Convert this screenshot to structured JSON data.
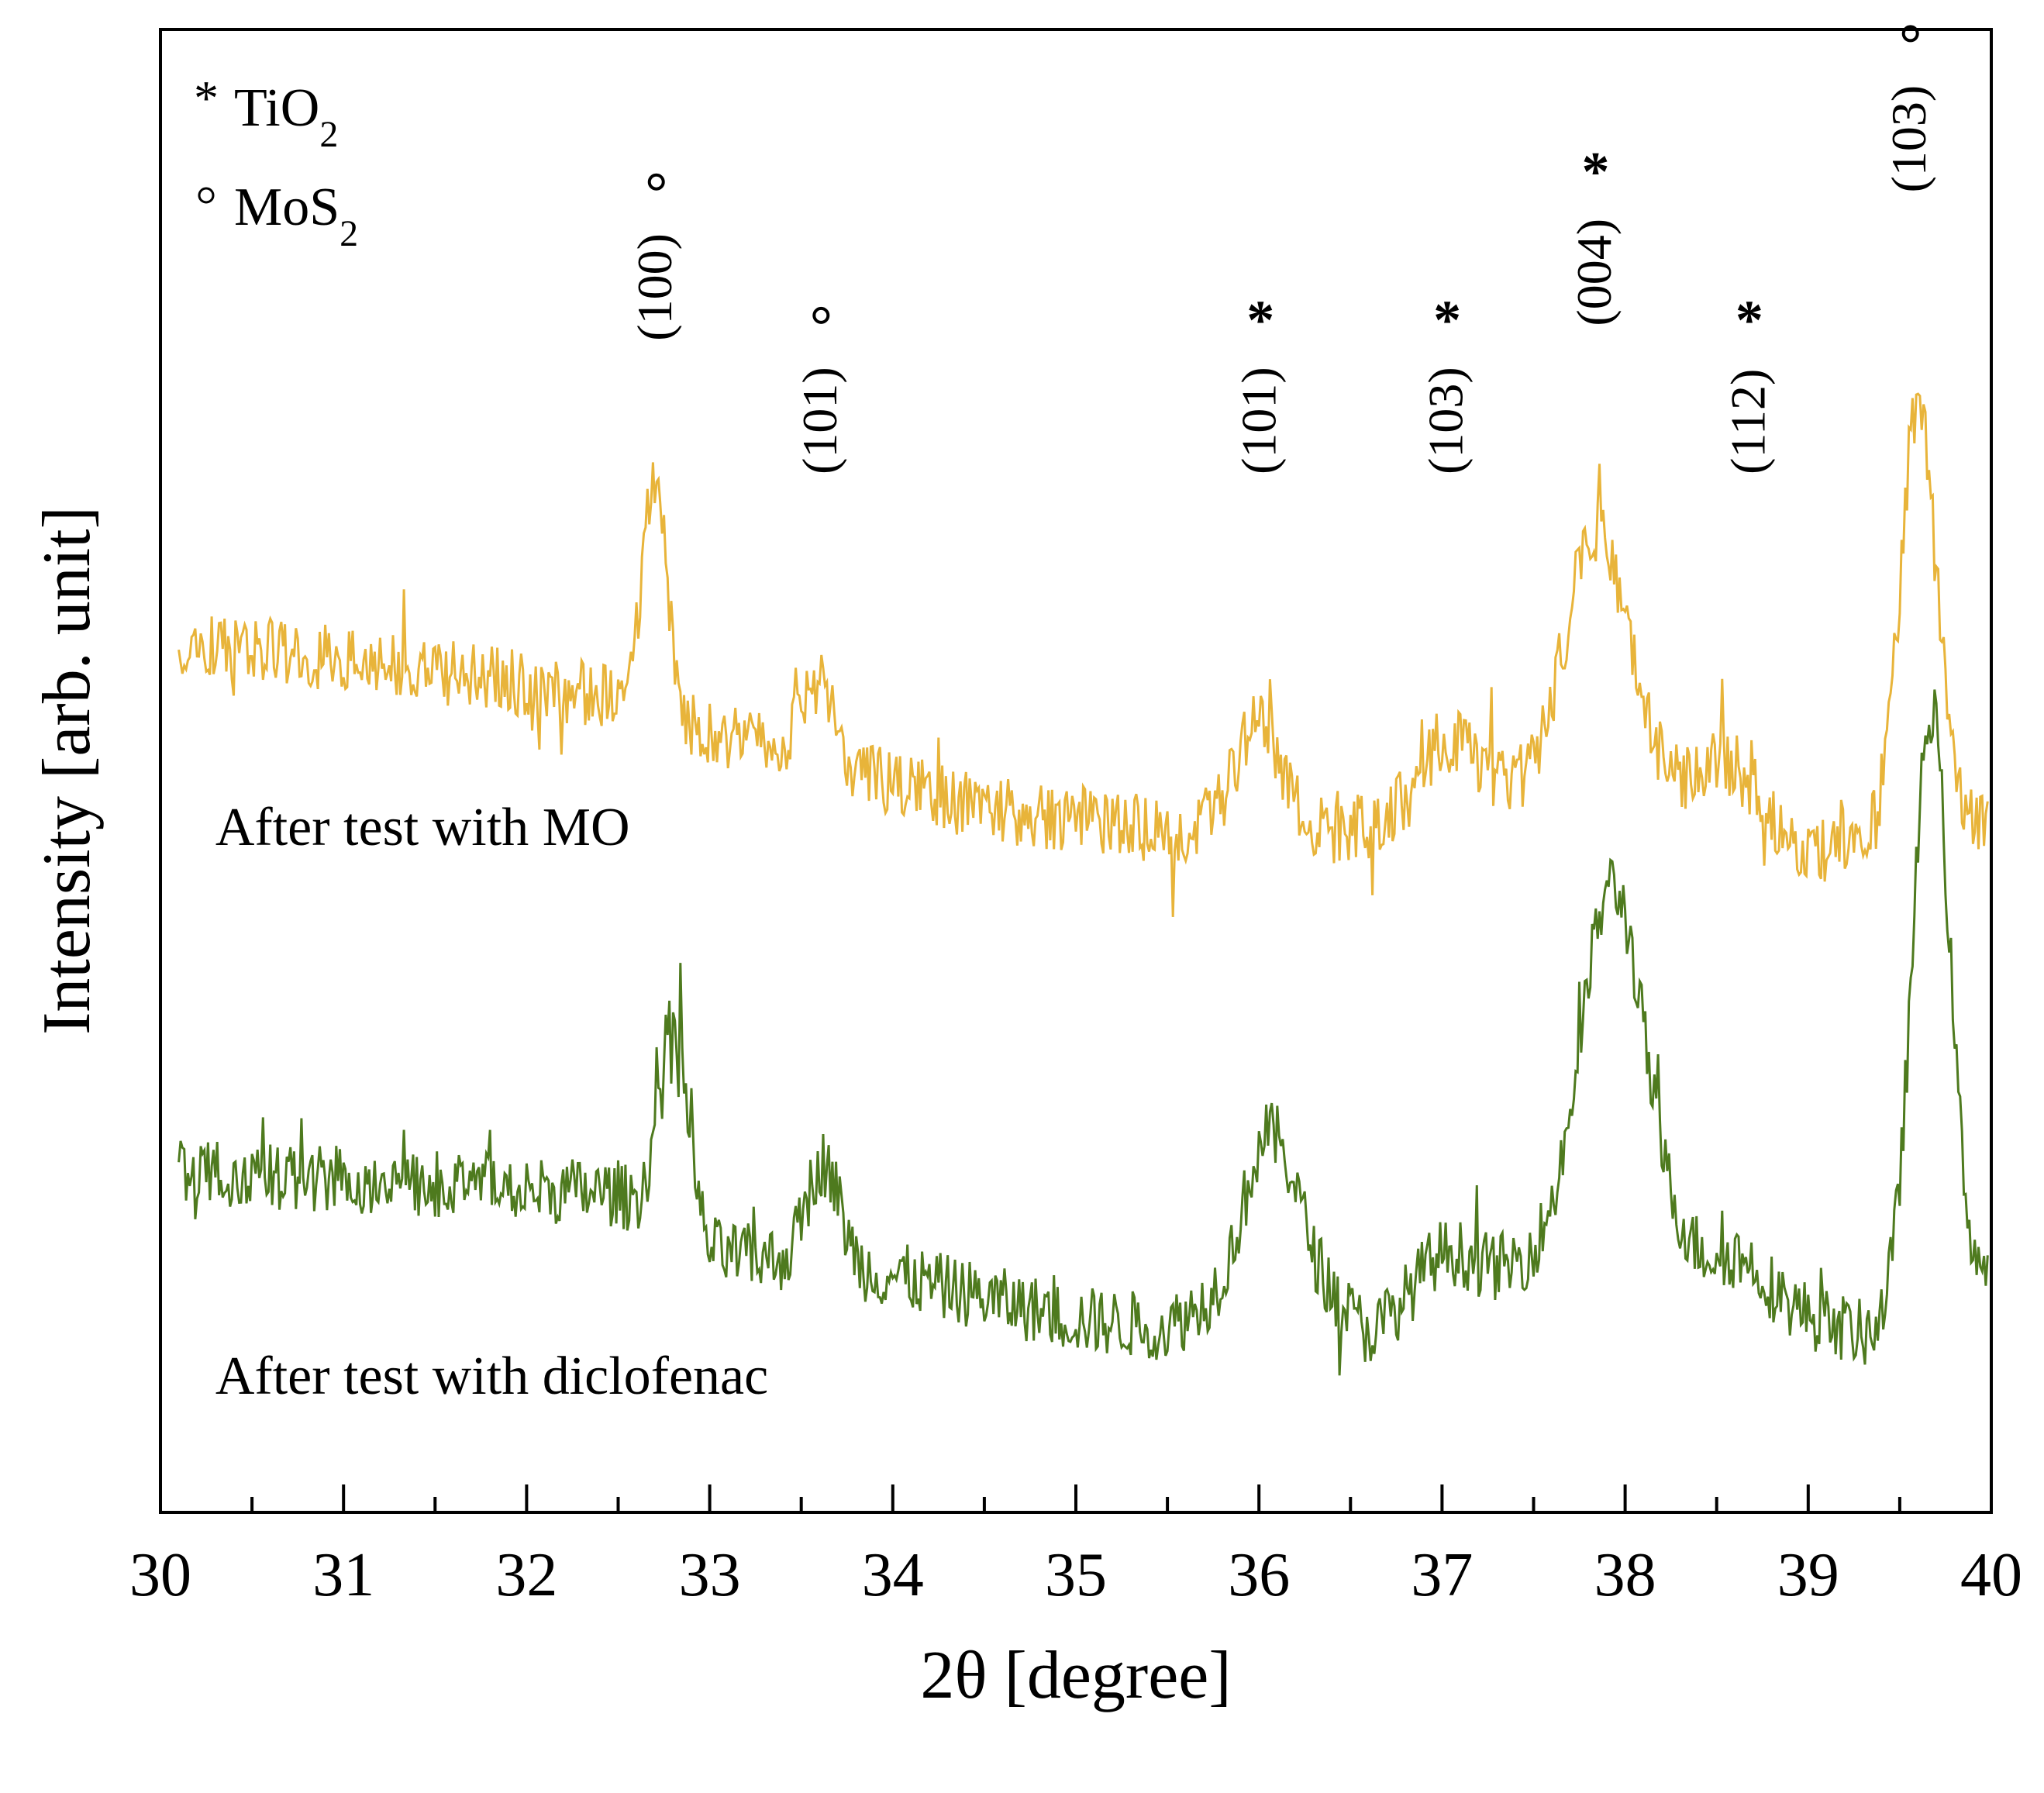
{
  "chart_data": {
    "type": "line",
    "title": "",
    "xlabel": "2θ [degree]",
    "ylabel": "Intensity [arb. unit]",
    "xlim": [
      30,
      40
    ],
    "ylim": [
      0,
      100
    ],
    "y_ticks_shown": false,
    "x_ticks": [
      "30",
      "31",
      "32",
      "33",
      "34",
      "35",
      "36",
      "37",
      "38",
      "39",
      "40"
    ],
    "legend": {
      "placement": "top-left",
      "items": [
        {
          "symbol": "*",
          "label": "TiO",
          "sub": "2"
        },
        {
          "symbol": "○",
          "label": "MoS",
          "sub": "2"
        }
      ]
    },
    "series": [
      {
        "name": "After test with MO",
        "color": "#E8B43A",
        "baseline": [
          [
            30.0,
            59.0
          ],
          [
            32.5,
            55.0
          ],
          [
            33.0,
            52.5
          ],
          [
            34.5,
            47.5
          ],
          [
            35.5,
            46.0
          ],
          [
            36.5,
            46.0
          ],
          [
            37.5,
            49.0
          ],
          [
            38.5,
            48.5
          ],
          [
            39.0,
            44.5
          ],
          [
            39.2,
            44.5
          ],
          [
            40.0,
            46.5
          ]
        ],
        "peaks": [
          {
            "x": 32.7,
            "h": 15.0,
            "w": 0.07
          },
          {
            "x": 33.58,
            "h": 5.5,
            "w": 0.09
          },
          {
            "x": 36.0,
            "h": 7.0,
            "w": 0.13
          },
          {
            "x": 37.02,
            "h": 4.5,
            "w": 0.15
          },
          {
            "x": 37.85,
            "h": 17.5,
            "w": 0.17
          },
          {
            "x": 38.6,
            "h": 2.5,
            "w": 0.15
          },
          {
            "x": 39.6,
            "h": 29.0,
            "w": 0.1
          }
        ],
        "noise": 2.3
      },
      {
        "name": "After test with diclofenac",
        "color": "#4E7A1E",
        "baseline": [
          [
            30.0,
            23.0
          ],
          [
            32.5,
            21.5
          ],
          [
            33.0,
            17.5
          ],
          [
            34.0,
            16.0
          ],
          [
            35.0,
            13.0
          ],
          [
            35.5,
            12.5
          ],
          [
            36.2,
            17.5
          ],
          [
            36.6,
            12.0
          ],
          [
            37.0,
            15.0
          ],
          [
            37.5,
            17.0
          ],
          [
            38.3,
            17.5
          ],
          [
            38.8,
            14.0
          ],
          [
            39.3,
            12.0
          ],
          [
            40.0,
            16.0
          ]
        ],
        "peaks": [
          {
            "x": 32.8,
            "h": 13.5,
            "w": 0.08
          },
          {
            "x": 33.62,
            "h": 7.0,
            "w": 0.09
          },
          {
            "x": 36.05,
            "h": 9.0,
            "w": 0.13
          },
          {
            "x": 37.0,
            "h": 2.5,
            "w": 0.15
          },
          {
            "x": 37.93,
            "h": 25.0,
            "w": 0.17
          },
          {
            "x": 38.65,
            "h": 2.0,
            "w": 0.15
          },
          {
            "x": 39.67,
            "h": 40.0,
            "w": 0.1
          }
        ],
        "noise": 2.3
      }
    ],
    "annotations": [
      {
        "x": 32.7,
        "y": 79,
        "hkl": "(100)",
        "marker": "○"
      },
      {
        "x": 33.6,
        "y": 70,
        "hkl": "(101)",
        "marker": "○"
      },
      {
        "x": 36.0,
        "y": 70,
        "hkl": "(101)",
        "marker": "*"
      },
      {
        "x": 37.02,
        "y": 70,
        "hkl": "(103)",
        "marker": "*"
      },
      {
        "x": 37.83,
        "y": 80,
        "hkl": "(004)",
        "marker": "*"
      },
      {
        "x": 38.67,
        "y": 70,
        "hkl": "(112)",
        "marker": "*"
      },
      {
        "x": 39.55,
        "y": 89,
        "hkl": "(103)",
        "marker": "○"
      }
    ],
    "series_labels": [
      {
        "text": "After test with MO",
        "x": 30.3,
        "y": 45
      },
      {
        "text": "After test with diclofenac",
        "x": 30.3,
        "y": 8
      }
    ]
  }
}
